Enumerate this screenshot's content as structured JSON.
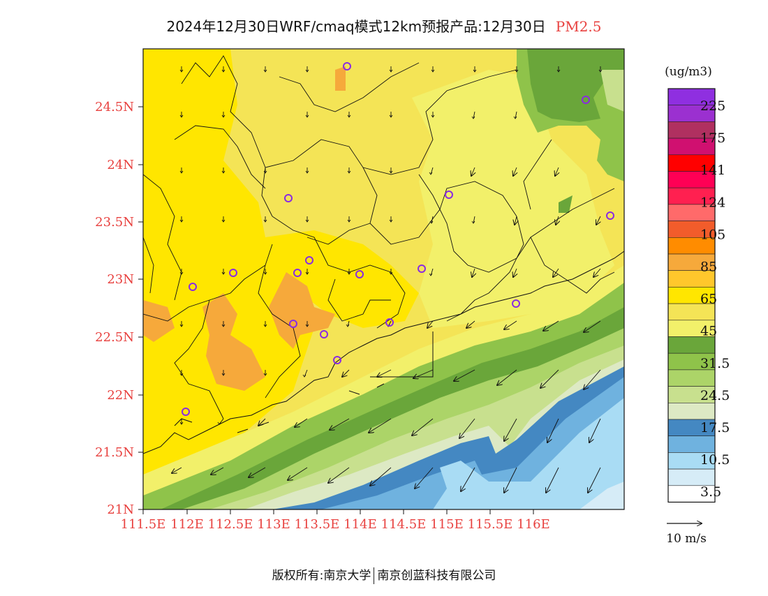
{
  "header": {
    "title": "2024年12月30日WRF/cmaq模式12km预报产品:12月30日",
    "pollutant": "PM2.5"
  },
  "map": {
    "lat_ticks": [
      "24.5N",
      "24N",
      "23.5N",
      "23N",
      "22.5N",
      "22N",
      "21.5N",
      "21N"
    ],
    "lon_ticks": [
      "111.5E",
      "112E",
      "112.5E",
      "113E",
      "113.5E",
      "114E",
      "114.5E",
      "115E",
      "115.5E",
      "116E"
    ],
    "label_color": "#e8413f",
    "station_color": "#8a2be2"
  },
  "legend": {
    "unit": "(ug/m3)",
    "colors": [
      "#ffffff",
      "#d6ecf7",
      "#a9dcf4",
      "#6fb2df",
      "#4488c2",
      "#dde9c4",
      "#c8e08e",
      "#acd468",
      "#8fc34a",
      "#6aa63a",
      "#f2f06a",
      "#f4e456",
      "#ffe600",
      "#ffc72c",
      "#f6a93b",
      "#ff8c00",
      "#f25c2b",
      "#ff6a6a",
      "#ff2050",
      "#ff0055",
      "#ff0000",
      "#d01070",
      "#b03060",
      "#9b30d0",
      "#8f2fe0"
    ],
    "labels": [
      "3.5",
      "10.5",
      "17.5",
      "24.5",
      "31.5",
      "45",
      "65",
      "85",
      "105",
      "124",
      "141",
      "175",
      "225"
    ],
    "wind_scale_label": "10 m/s"
  },
  "footer": {
    "copyright": "版权所有:南京大学",
    "company": "南京创蓝科技有限公司"
  }
}
